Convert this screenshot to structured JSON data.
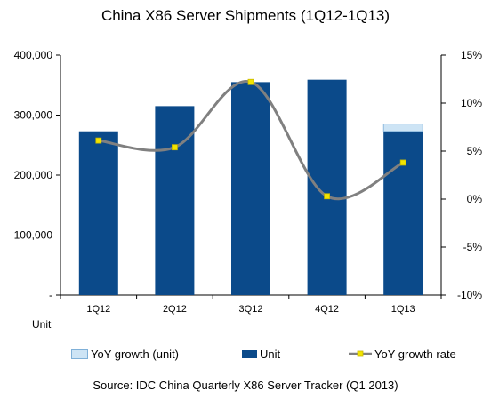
{
  "chart_data": {
    "type": "bar",
    "title": "China X86 Server Shipments (1Q12-1Q13)",
    "categories": [
      "1Q12",
      "2Q12",
      "3Q12",
      "4Q12",
      "1Q13"
    ],
    "series": [
      {
        "name": "Unit",
        "type": "bar",
        "axis": "left",
        "color": "#0b4a8a",
        "values": [
          273000,
          315000,
          355000,
          359000,
          273000
        ]
      },
      {
        "name": "YoY growth (unit)",
        "type": "bar-stack",
        "axis": "left",
        "color": "#cde4f5",
        "values": [
          0,
          0,
          0,
          0,
          12000
        ]
      },
      {
        "name": "YoY growth rate",
        "type": "line",
        "axis": "right",
        "color": "#808080",
        "marker_color": "#f2e400",
        "values": [
          6.1,
          5.4,
          12.2,
          0.3,
          3.8
        ]
      }
    ],
    "y_left": {
      "label": "Unit",
      "ylim": [
        0,
        400000
      ],
      "ticks": [
        "-",
        "100,000",
        "200,000",
        "300,000",
        "400,000"
      ]
    },
    "y_right": {
      "ylim": [
        -10,
        15
      ],
      "ticks": [
        "-10%",
        "-5%",
        "0%",
        "5%",
        "10%",
        "15%"
      ]
    },
    "grid": false,
    "legend_position": "bottom"
  },
  "source": "Source: IDC China Quarterly X86 Server Tracker (Q1 2013)"
}
